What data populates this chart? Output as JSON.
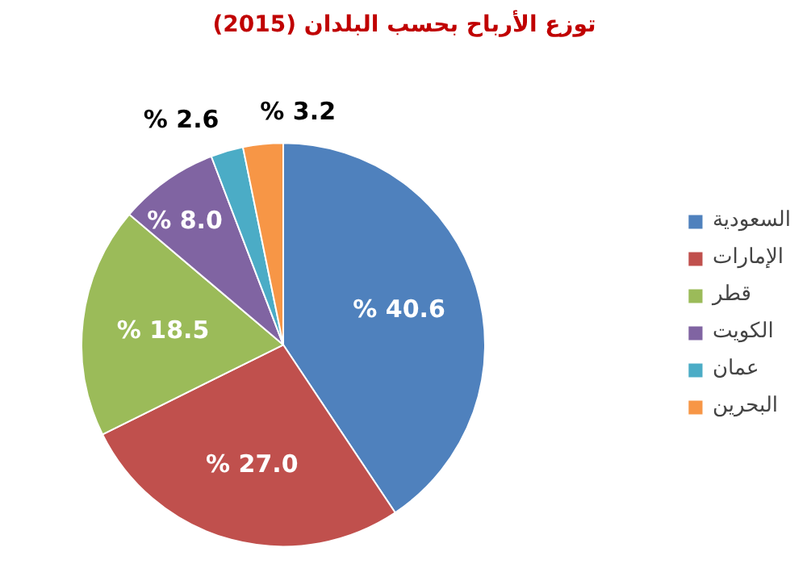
{
  "chart_data": {
    "type": "pie",
    "title": "توزع الأرباح بحسب البلدان (2015)",
    "categories": [
      "السعودية",
      "الإمارات",
      "قطر",
      "الكويت",
      "عمان",
      "البحرين"
    ],
    "values": [
      40.6,
      27.0,
      18.5,
      8.0,
      2.6,
      3.2
    ],
    "value_labels": [
      "% 40.6",
      "% 27.0",
      "% 18.5",
      "% 8.0",
      "% 2.6",
      "% 3.2"
    ],
    "colors": [
      "#4f81bd",
      "#c0504d",
      "#9bbb59",
      "#8064a2",
      "#4bacc6",
      "#f79646"
    ],
    "legend": "right"
  }
}
